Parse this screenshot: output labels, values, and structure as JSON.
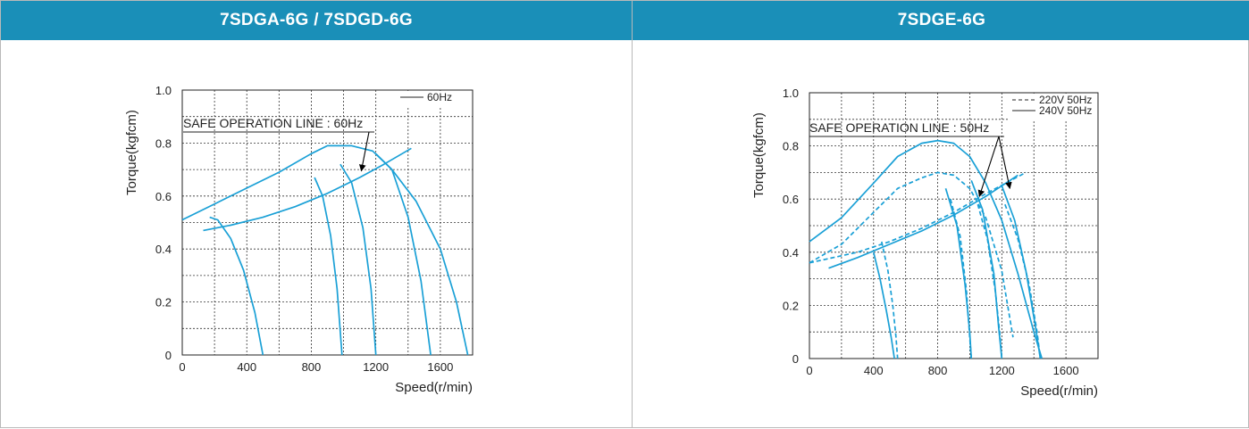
{
  "panels": {
    "left": {
      "header": "7SDGA-6G / 7SDGD-6G"
    },
    "right": {
      "header": "7SDGE-6G"
    }
  },
  "colors": {
    "header_bg": "#1a8fb8",
    "curve": "#1aa0d6"
  },
  "chart_data": [
    {
      "type": "line",
      "title": "7SDGA-6G / 7SDGD-6G",
      "xlabel": "Speed(r/min)",
      "ylabel": "Torque(kgfcm)",
      "xlim": [
        0,
        1800
      ],
      "ylim": [
        0,
        1.0
      ],
      "x_ticks": [
        0,
        400,
        800,
        1200,
        1600
      ],
      "y_ticks": [
        0,
        0.2,
        0.4,
        0.6,
        0.8,
        1.0
      ],
      "grid": true,
      "legend": [
        {
          "label": "60Hz",
          "style": "solid"
        }
      ],
      "legend_position": "top-right",
      "annotation": "SAFE OPERATION LINE : 60Hz",
      "series": [
        {
          "style": "solid",
          "x": [
            0,
            200,
            400,
            600,
            800,
            900,
            1050,
            1180,
            1300,
            1450,
            1600,
            1700,
            1770
          ],
          "y": [
            0.51,
            0.57,
            0.63,
            0.69,
            0.76,
            0.79,
            0.79,
            0.77,
            0.7,
            0.58,
            0.4,
            0.2,
            0.0
          ]
        },
        {
          "style": "solid",
          "x": [
            130,
            300,
            500,
            700,
            900,
            1100,
            1250,
            1420
          ],
          "y": [
            0.47,
            0.49,
            0.52,
            0.56,
            0.61,
            0.67,
            0.72,
            0.78
          ]
        },
        {
          "style": "solid",
          "x": [
            170,
            220,
            300,
            380,
            450,
            500
          ],
          "y": [
            0.52,
            0.51,
            0.44,
            0.32,
            0.16,
            0.0
          ]
        },
        {
          "style": "solid",
          "x": [
            820,
            870,
            920,
            960,
            990
          ],
          "y": [
            0.67,
            0.6,
            0.45,
            0.25,
            0.0
          ]
        },
        {
          "style": "solid",
          "x": [
            980,
            1050,
            1120,
            1170,
            1200
          ],
          "y": [
            0.72,
            0.65,
            0.48,
            0.25,
            0.0
          ]
        },
        {
          "style": "solid",
          "x": [
            1200,
            1300,
            1400,
            1480,
            1540
          ],
          "y": [
            0.76,
            0.7,
            0.52,
            0.28,
            0.0
          ]
        }
      ]
    },
    {
      "type": "line",
      "title": "7SDGE-6G",
      "xlabel": "Speed(r/min)",
      "ylabel": "Torque(kgfcm)",
      "xlim": [
        0,
        1800
      ],
      "ylim": [
        0,
        1.0
      ],
      "x_ticks": [
        0,
        400,
        800,
        1200,
        1600
      ],
      "y_ticks": [
        0,
        0.2,
        0.4,
        0.6,
        0.8,
        1.0
      ],
      "grid": true,
      "legend": [
        {
          "label": "220V 50Hz",
          "style": "dashed"
        },
        {
          "label": "240V 50Hz",
          "style": "solid"
        }
      ],
      "legend_position": "top-right",
      "annotation": "SAFE OPERATION LINE : 50Hz",
      "series": [
        {
          "name": "240V 50Hz",
          "style": "solid",
          "x": [
            0,
            200,
            400,
            550,
            700,
            800,
            900,
            1000,
            1100,
            1200,
            1300,
            1400,
            1450
          ],
          "y": [
            0.44,
            0.53,
            0.66,
            0.76,
            0.81,
            0.82,
            0.81,
            0.76,
            0.66,
            0.52,
            0.32,
            0.1,
            0.0
          ]
        },
        {
          "name": "220V 50Hz",
          "style": "dashed",
          "x": [
            0,
            200,
            400,
            550,
            700,
            800,
            900,
            1000,
            1100,
            1200,
            1270
          ],
          "y": [
            0.36,
            0.43,
            0.55,
            0.64,
            0.68,
            0.7,
            0.69,
            0.64,
            0.53,
            0.33,
            0.08
          ]
        },
        {
          "name": "240V 50Hz",
          "style": "solid",
          "x": [
            120,
            300,
            500,
            700,
            900,
            1100,
            1300
          ],
          "y": [
            0.34,
            0.38,
            0.43,
            0.48,
            0.54,
            0.61,
            0.69
          ]
        },
        {
          "name": "220V 50Hz",
          "style": "dashed",
          "x": [
            0,
            300,
            500,
            700,
            900,
            1100,
            1350
          ],
          "y": [
            0.36,
            0.4,
            0.44,
            0.49,
            0.55,
            0.62,
            0.7
          ]
        },
        {
          "name": "240V 50Hz",
          "style": "solid",
          "x": [
            400,
            440,
            480,
            510,
            530
          ],
          "y": [
            0.4,
            0.3,
            0.18,
            0.08,
            0.0
          ]
        },
        {
          "name": "220V 50Hz",
          "style": "dashed",
          "x": [
            450,
            490,
            520,
            540,
            550
          ],
          "y": [
            0.44,
            0.33,
            0.2,
            0.08,
            0.0
          ]
        },
        {
          "name": "240V 50Hz",
          "style": "solid",
          "x": [
            850,
            920,
            970,
            1000,
            1010
          ],
          "y": [
            0.64,
            0.5,
            0.28,
            0.1,
            0.0
          ]
        },
        {
          "name": "220V 50Hz",
          "style": "dashed",
          "x": [
            880,
            940,
            980,
            1000,
            1010
          ],
          "y": [
            0.6,
            0.46,
            0.25,
            0.08,
            0.0
          ]
        },
        {
          "name": "240V 50Hz",
          "style": "solid",
          "x": [
            1010,
            1080,
            1150,
            1180,
            1200
          ],
          "y": [
            0.67,
            0.56,
            0.32,
            0.12,
            0.0
          ]
        },
        {
          "name": "220V 50Hz",
          "style": "dashed",
          "x": [
            1050,
            1110,
            1160,
            1190,
            1200
          ],
          "y": [
            0.58,
            0.45,
            0.25,
            0.08,
            0.0
          ]
        },
        {
          "name": "240V 50Hz",
          "style": "solid",
          "x": [
            1200,
            1280,
            1350,
            1410,
            1440
          ],
          "y": [
            0.65,
            0.52,
            0.33,
            0.12,
            0.0
          ]
        },
        {
          "name": "220V 50Hz",
          "style": "dashed",
          "x": [
            1220,
            1300,
            1370,
            1420,
            1440
          ],
          "y": [
            0.58,
            0.45,
            0.28,
            0.1,
            0.0
          ]
        }
      ]
    }
  ]
}
